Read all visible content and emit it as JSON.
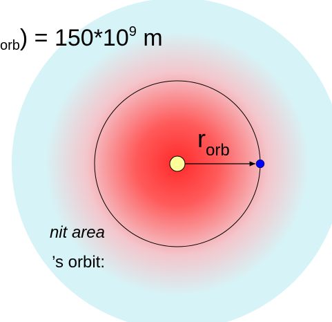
{
  "equation": {
    "subscript": "orb",
    "main": ") = 150*10",
    "superscript": "9",
    "unit": " m"
  },
  "radius_label": {
    "main": "r",
    "subscript": "orb"
  },
  "caption": {
    "line1": "nit area",
    "line2": "’s orbit:"
  }
}
